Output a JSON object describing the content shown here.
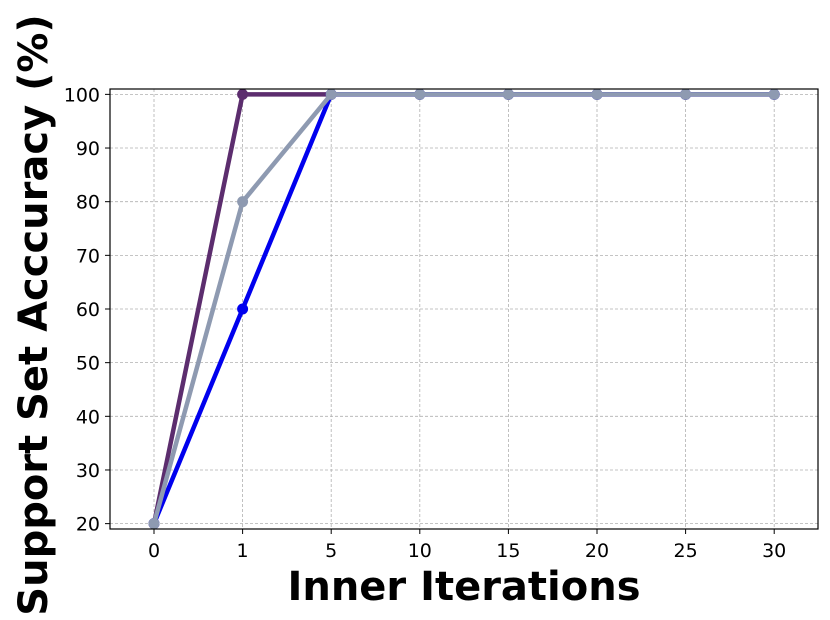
{
  "chart_data": {
    "type": "line",
    "categories": [
      "0",
      "1",
      "5",
      "10",
      "15",
      "20",
      "25",
      "30"
    ],
    "xlabel": "Inner Iterations",
    "ylabel": "Support Set Acccuracy (%)",
    "ylim": [
      19,
      101
    ],
    "yticks": [
      20,
      30,
      40,
      50,
      60,
      70,
      80,
      90,
      100
    ],
    "grid": true,
    "series": [
      {
        "color": "#5c2d6e",
        "values": [
          20,
          100,
          100,
          100,
          100,
          100,
          100,
          100
        ]
      },
      {
        "color": "#0000ee",
        "values": [
          20,
          60,
          100,
          100,
          100,
          100,
          100,
          100
        ]
      },
      {
        "color": "#8e9ab1",
        "values": [
          20,
          80,
          100,
          100,
          100,
          100,
          100,
          100
        ]
      }
    ]
  }
}
